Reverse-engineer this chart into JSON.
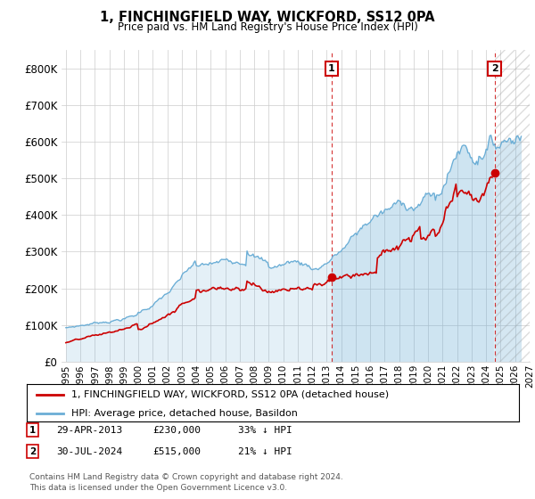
{
  "title": "1, FINCHINGFIELD WAY, WICKFORD, SS12 0PA",
  "subtitle": "Price paid vs. HM Land Registry's House Price Index (HPI)",
  "legend_line1": "1, FINCHINGFIELD WAY, WICKFORD, SS12 0PA (detached house)",
  "legend_line2": "HPI: Average price, detached house, Basildon",
  "annotation1_label": "1",
  "annotation1_date": "29-APR-2013",
  "annotation1_price": "£230,000",
  "annotation1_pct": "33% ↓ HPI",
  "annotation1_year": 2013.33,
  "annotation1_value": 230000,
  "annotation2_label": "2",
  "annotation2_date": "30-JUL-2024",
  "annotation2_price": "£515,000",
  "annotation2_pct": "21% ↓ HPI",
  "annotation2_year": 2024.58,
  "annotation2_value": 515000,
  "footer_line1": "Contains HM Land Registry data © Crown copyright and database right 2024.",
  "footer_line2": "This data is licensed under the Open Government Licence v3.0.",
  "hpi_color": "#6baed6",
  "price_color": "#cc0000",
  "annotation_box_color": "#cc0000",
  "ylim": [
    0,
    850000
  ],
  "yticks": [
    0,
    100000,
    200000,
    300000,
    400000,
    500000,
    600000,
    700000,
    800000
  ],
  "xlim_left": 1995.0,
  "xlim_right": 2026.5,
  "xtick_years": [
    1995,
    1996,
    1997,
    1998,
    1999,
    2000,
    2001,
    2002,
    2003,
    2004,
    2005,
    2006,
    2007,
    2008,
    2009,
    2010,
    2011,
    2012,
    2013,
    2014,
    2015,
    2016,
    2017,
    2018,
    2019,
    2020,
    2021,
    2022,
    2023,
    2024,
    2025,
    2026,
    2027
  ]
}
